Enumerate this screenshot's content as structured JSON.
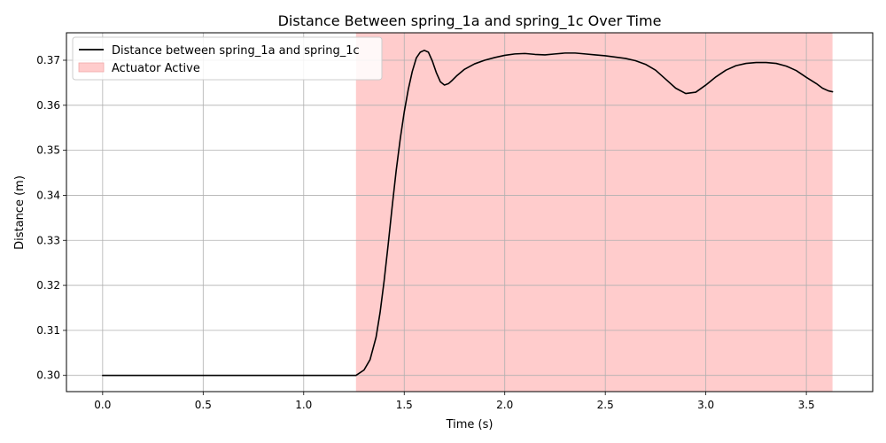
{
  "chart_data": {
    "type": "line",
    "title": "Distance Between spring_1a and spring_1c Over Time",
    "xlabel": "Time (s)",
    "ylabel": "Distance (m)",
    "xlim": [
      -0.18,
      3.83
    ],
    "ylim": [
      0.2964,
      0.3761
    ],
    "xticks": [
      0.0,
      0.5,
      1.0,
      1.5,
      2.0,
      2.5,
      3.0,
      3.5
    ],
    "xtick_labels": [
      "0.0",
      "0.5",
      "1.0",
      "1.5",
      "2.0",
      "2.5",
      "3.0",
      "3.5"
    ],
    "yticks": [
      0.3,
      0.31,
      0.32,
      0.33,
      0.34,
      0.35,
      0.36,
      0.37
    ],
    "ytick_labels": [
      "0.30",
      "0.31",
      "0.32",
      "0.33",
      "0.34",
      "0.35",
      "0.36",
      "0.37"
    ],
    "grid": true,
    "legend_position": "top-left",
    "shaded_region": {
      "name": "Actuator Active",
      "x_start": 1.26,
      "x_end": 3.63,
      "color": "#ffcccc"
    },
    "series": [
      {
        "name": "Distance between spring_1a and spring_1c",
        "color": "#000000",
        "x": [
          0.0,
          0.3,
          0.6,
          0.9,
          1.2,
          1.26,
          1.3,
          1.33,
          1.36,
          1.38,
          1.4,
          1.42,
          1.44,
          1.46,
          1.48,
          1.5,
          1.52,
          1.54,
          1.56,
          1.58,
          1.6,
          1.62,
          1.64,
          1.66,
          1.68,
          1.7,
          1.72,
          1.74,
          1.76,
          1.8,
          1.85,
          1.9,
          1.95,
          2.0,
          2.05,
          2.1,
          2.15,
          2.2,
          2.25,
          2.3,
          2.35,
          2.4,
          2.45,
          2.5,
          2.55,
          2.6,
          2.65,
          2.7,
          2.75,
          2.8,
          2.85,
          2.9,
          2.95,
          3.0,
          3.05,
          3.1,
          3.15,
          3.2,
          3.25,
          3.3,
          3.35,
          3.4,
          3.45,
          3.5,
          3.55,
          3.58,
          3.61,
          3.63
        ],
        "y": [
          0.3,
          0.3,
          0.3,
          0.3,
          0.3,
          0.3,
          0.3012,
          0.3035,
          0.3085,
          0.314,
          0.321,
          0.329,
          0.3375,
          0.3455,
          0.3525,
          0.3585,
          0.3635,
          0.3675,
          0.3705,
          0.3718,
          0.3722,
          0.3718,
          0.3698,
          0.3672,
          0.3652,
          0.3645,
          0.3648,
          0.3656,
          0.3665,
          0.368,
          0.3692,
          0.37,
          0.3706,
          0.3711,
          0.3714,
          0.3715,
          0.3713,
          0.3712,
          0.3714,
          0.3716,
          0.3716,
          0.3714,
          0.3712,
          0.371,
          0.3707,
          0.3704,
          0.3699,
          0.3691,
          0.3678,
          0.3658,
          0.3638,
          0.3626,
          0.3629,
          0.3645,
          0.3663,
          0.3678,
          0.3688,
          0.3693,
          0.3695,
          0.3695,
          0.3693,
          0.3687,
          0.3677,
          0.3662,
          0.3648,
          0.3638,
          0.3632,
          0.363
        ]
      }
    ]
  }
}
